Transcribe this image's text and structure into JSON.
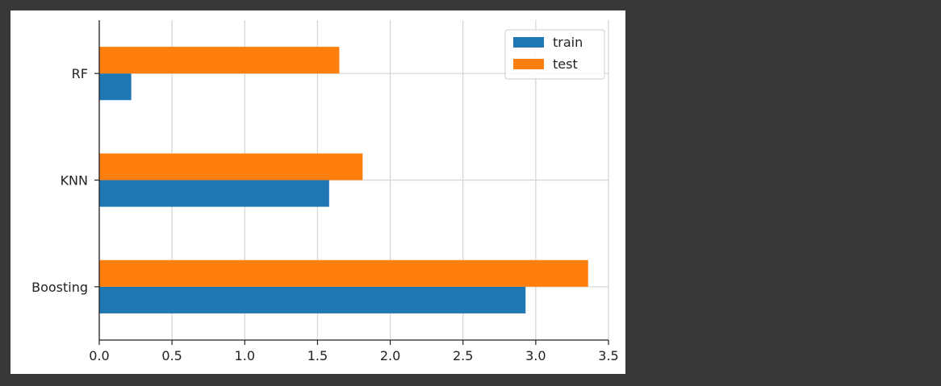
{
  "colors": {
    "page_background": "#383838",
    "chart_background": "#ffffff",
    "train": "#1f77b4",
    "test": "#ff7f0e",
    "grid": "#d3d3d3",
    "axis": "#222222"
  },
  "chart_data": {
    "type": "bar",
    "orientation": "horizontal",
    "categories": [
      "Boosting",
      "KNN",
      "RF"
    ],
    "series": [
      {
        "name": "train",
        "values": [
          2.93,
          1.58,
          0.22
        ]
      },
      {
        "name": "test",
        "values": [
          3.36,
          1.81,
          1.65
        ]
      }
    ],
    "title": "",
    "xlabel": "",
    "ylabel": "",
    "xlim": [
      0,
      3.5
    ],
    "xticks": [
      "0.0",
      "0.5",
      "1.0",
      "1.5",
      "2.0",
      "2.5",
      "3.0",
      "3.5"
    ],
    "grid": true,
    "legend_position": "top-right"
  }
}
